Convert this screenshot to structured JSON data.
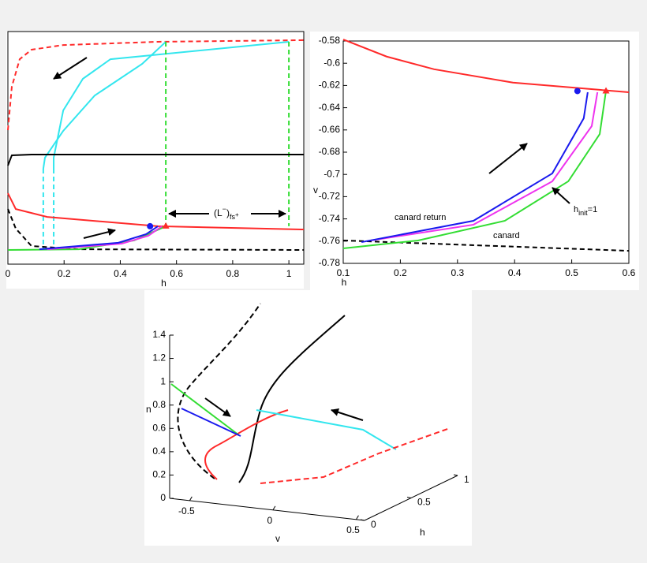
{
  "chart_data": [
    {
      "type": "line",
      "xlabel": "h",
      "xlim": [
        0,
        1.053
      ],
      "ylim": [
        0,
        1
      ],
      "xticks": [
        0,
        0.2,
        0.4,
        0.6,
        0.8,
        1
      ],
      "annotation": {
        "text": "(L",
        "sup": "−",
        "close": ")",
        "sub": "fs",
        "subsup": "+"
      },
      "series": [
        {
          "color": "#ff2a2a",
          "dash": true,
          "x": [
            0,
            0.014,
            0.042,
            0.084,
            0.197,
            0.534,
            1.053
          ],
          "values": [
            0.576,
            0.763,
            0.881,
            0.922,
            0.942,
            0.956,
            0.963
          ]
        },
        {
          "color": "#33e6ee",
          "dash": false,
          "x": [
            0.562,
            0.478,
            0.309,
            0.197,
            0.132,
            0.126
          ],
          "values": [
            0.956,
            0.861,
            0.725,
            0.573,
            0.458,
            0.41
          ]
        },
        {
          "color": "#33e6ee",
          "dash": false,
          "x": [
            1.0,
            0.365,
            0.267,
            0.197,
            0.163,
            0.163
          ],
          "values": [
            0.956,
            0.881,
            0.797,
            0.661,
            0.458,
            0.41
          ]
        },
        {
          "color": "#33e6ee",
          "dash": true,
          "x": [
            0.126,
            0.126
          ],
          "values": [
            0.41,
            0.068
          ]
        },
        {
          "color": "#33e6ee",
          "dash": true,
          "x": [
            0.163,
            0.163
          ],
          "values": [
            0.41,
            0.068
          ]
        },
        {
          "color": "#33dd33",
          "dash": true,
          "x": [
            0.562,
            0.562
          ],
          "values": [
            0.956,
            0.163
          ]
        },
        {
          "color": "#33dd33",
          "dash": true,
          "x": [
            1.0,
            1.0
          ],
          "values": [
            0.956,
            0.163
          ]
        },
        {
          "color": "#000000",
          "dash": false,
          "x": [
            0,
            0.014,
            0.084,
            1.053
          ],
          "values": [
            0.424,
            0.468,
            0.471,
            0.471
          ]
        },
        {
          "color": "#ff2a2a",
          "dash": false,
          "x": [
            0,
            0.028,
            0.14,
            0.534,
            1.053
          ],
          "values": [
            0.305,
            0.237,
            0.203,
            0.163,
            0.149
          ]
        },
        {
          "color": "#000000",
          "dash": true,
          "x": [
            0,
            0.028,
            0.084,
            0.253,
            1.053
          ],
          "values": [
            0.237,
            0.153,
            0.078,
            0.064,
            0.061
          ]
        },
        {
          "color": "#33dd33",
          "dash": false,
          "x": [
            0,
            0.253,
            0.449,
            0.562
          ],
          "values": [
            0.061,
            0.064,
            0.102,
            0.163
          ]
        },
        {
          "color": "#ee33ee",
          "dash": false,
          "x": [
            0.14,
            0.405,
            0.5,
            0.548
          ],
          "values": [
            0.064,
            0.088,
            0.122,
            0.163
          ]
        },
        {
          "color": "#1a1aee",
          "dash": false,
          "x": [
            0.112,
            0.393,
            0.492,
            0.534
          ],
          "values": [
            0.064,
            0.092,
            0.129,
            0.163
          ]
        }
      ],
      "points": [
        {
          "marker": "circle",
          "color": "#1a1aee",
          "x": 0.506,
          "value": 0.163
        },
        {
          "marker": "triangle",
          "color": "#ff2a2a",
          "x": 0.562,
          "value": 0.163
        }
      ]
    },
    {
      "type": "line",
      "xlabel": "h",
      "ylabel": "v",
      "xlim": [
        0.1,
        0.6
      ],
      "ylim": [
        -0.78,
        -0.58
      ],
      "xticks": [
        0.1,
        0.2,
        0.3,
        0.4,
        0.5,
        0.6
      ],
      "yticks": [
        -0.78,
        -0.76,
        -0.74,
        -0.72,
        -0.7,
        -0.68,
        -0.66,
        -0.64,
        -0.62,
        -0.6,
        -0.58
      ],
      "annotations": [
        "canard return",
        "canard"
      ],
      "hinit": {
        "base": "h",
        "sub": "init",
        "rest": "=1"
      },
      "series": [
        {
          "color": "#ff2a2a",
          "dash": false,
          "x": [
            0.1,
            0.176,
            0.259,
            0.397,
            0.6
          ],
          "values": [
            -0.5786,
            -0.594,
            -0.6054,
            -0.6174,
            -0.6261
          ]
        },
        {
          "color": "#000000",
          "dash": true,
          "x": [
            0.1,
            0.6
          ],
          "values": [
            -0.7594,
            -0.7687
          ]
        },
        {
          "color": "#33dd33",
          "dash": false,
          "x": [
            0.1,
            0.231,
            0.383,
            0.494,
            0.549,
            0.56
          ],
          "values": [
            -0.7665,
            -0.7594,
            -0.7417,
            -0.7062,
            -0.6637,
            -0.6247
          ]
        },
        {
          "color": "#ee33ee",
          "dash": false,
          "x": [
            0.148,
            0.328,
            0.466,
            0.535,
            0.545
          ],
          "values": [
            -0.7594,
            -0.7452,
            -0.7062,
            -0.6566,
            -0.6261
          ]
        },
        {
          "color": "#1a1aee",
          "dash": false,
          "x": [
            0.132,
            0.328,
            0.466,
            0.521,
            0.528
          ],
          "values": [
            -0.7609,
            -0.7417,
            -0.6991,
            -0.6495,
            -0.6261
          ]
        }
      ],
      "points": [
        {
          "marker": "circle",
          "color": "#1a1aee",
          "x": 0.51,
          "value": -0.625
        },
        {
          "marker": "triangle",
          "color": "#ff2a2a",
          "x": 0.56,
          "value": -0.625
        }
      ]
    },
    {
      "type": "line3d",
      "xlabel": "v",
      "ylabel": "n",
      "hlabel": "h",
      "xlim": [
        -0.62,
        0.55
      ],
      "ylim": [
        0,
        1.4
      ],
      "hlim": [
        0,
        1
      ],
      "xticks": [
        -0.5,
        0,
        0.5
      ],
      "yticks": [
        0,
        0.2,
        0.4,
        0.6,
        0.8,
        1,
        1.2,
        1.4
      ],
      "hticks": [
        0,
        0.5,
        1
      ]
    }
  ]
}
